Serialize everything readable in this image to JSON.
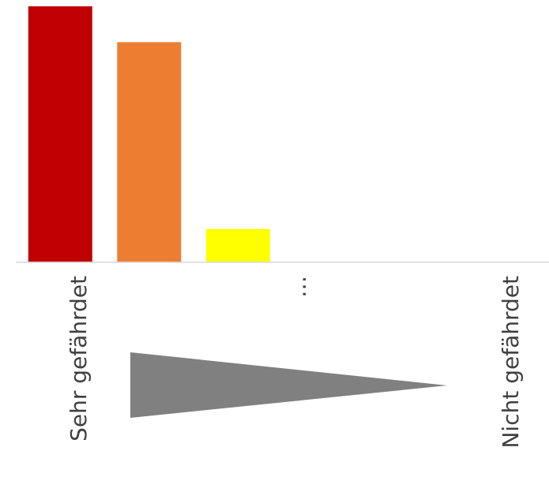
{
  "chart_data": {
    "type": "bar",
    "title": "",
    "xlabel": "",
    "ylabel": "",
    "categories": [
      "Sehr gefährdet",
      "",
      "",
      "…",
      "",
      "Nicht gefährdet"
    ],
    "values": [
      100,
      86,
      13,
      0,
      0,
      0
    ],
    "colors": [
      "#C00000",
      "#ED7D31",
      "#FFFF00",
      "#FFFFFF",
      "#FFFFFF",
      "#FFFFFF"
    ],
    "ylim": [
      0,
      100
    ],
    "grid": false,
    "legend": "none",
    "axis_color": "#D9D9D9",
    "decoration": {
      "shape": "wedge-arrow-right",
      "color": "#808080"
    }
  }
}
